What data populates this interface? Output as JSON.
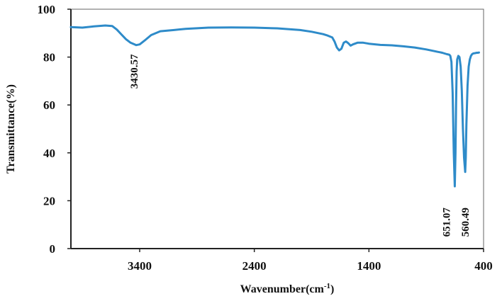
{
  "chart_data": {
    "type": "line",
    "title": "",
    "xlabel": "Wavenumber(cm",
    "xlabel_sup": "-1",
    "xlabel_close": ")",
    "ylabel": "Transmittance(%)",
    "xlim": [
      4000,
      400
    ],
    "ylim": [
      0,
      100
    ],
    "x_reversed": true,
    "grid": false,
    "x_ticks": [
      3400,
      2400,
      1400,
      400
    ],
    "x_tick_labels": [
      "3400",
      "2400",
      "1400",
      "400"
    ],
    "y_ticks": [
      0,
      20,
      40,
      60,
      80,
      100
    ],
    "y_tick_labels": [
      "0",
      "20",
      "40",
      "60",
      "80",
      "100"
    ],
    "series_color": "#2e8bc9",
    "series": [
      {
        "x": [
          4000,
          3900,
          3800,
          3700,
          3640,
          3600,
          3560,
          3520,
          3480,
          3440,
          3430.57,
          3400,
          3360,
          3300,
          3220,
          3100,
          3000,
          2800,
          2600,
          2400,
          2200,
          2000,
          1900,
          1800,
          1760,
          1720,
          1700,
          1680,
          1660,
          1640,
          1620,
          1600,
          1580,
          1560,
          1540,
          1500,
          1450,
          1400,
          1300,
          1200,
          1100,
          1000,
          900,
          840,
          800,
          780,
          760,
          740,
          720,
          700,
          690,
          680,
          670,
          660,
          651.07,
          645,
          640,
          635,
          630,
          620,
          610,
          600,
          590,
          580,
          570,
          560.49,
          555,
          550,
          540,
          530,
          520,
          510,
          500,
          490,
          480,
          470,
          460,
          450,
          440
        ],
        "y": [
          92.5,
          92.3,
          92.8,
          93.2,
          93,
          91.5,
          89.5,
          87.5,
          86,
          85.2,
          85,
          85.3,
          86.8,
          89.2,
          90.8,
          91.3,
          91.8,
          92.3,
          92.4,
          92.3,
          92.0,
          91.3,
          90.6,
          89.6,
          89.0,
          88.2,
          86.5,
          84.0,
          82.8,
          83.5,
          86.0,
          86.5,
          85.8,
          84.8,
          85.3,
          86.0,
          86.0,
          85.6,
          85.1,
          84.9,
          84.5,
          84.0,
          83.2,
          82.6,
          82.2,
          82.0,
          81.8,
          81.5,
          81.2,
          81.0,
          80.5,
          78.0,
          65.0,
          40.0,
          26.0,
          40.0,
          60.0,
          74.0,
          79.0,
          80.5,
          80.0,
          76.0,
          66.0,
          50.0,
          38.0,
          32.0,
          38.0,
          52.0,
          68.0,
          76.0,
          79.0,
          80.5,
          81.2,
          81.5,
          81.6,
          81.7,
          81.8,
          81.8,
          81.9
        ]
      }
    ],
    "annotations": [
      {
        "text": "3430.57",
        "x": 3420,
        "y": 74
      },
      {
        "text": "651.07",
        "x": 695,
        "y": 11
      },
      {
        "text": "560.49",
        "x": 530,
        "y": 11
      }
    ]
  }
}
